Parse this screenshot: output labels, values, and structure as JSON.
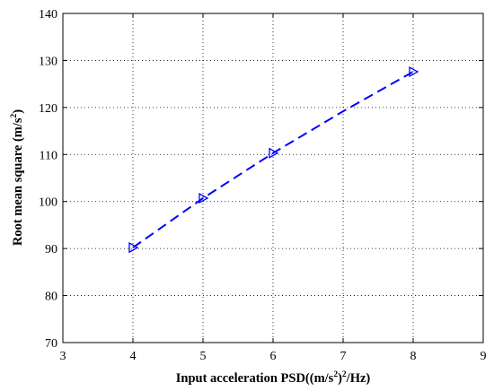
{
  "chart_data": {
    "type": "line",
    "x": [
      4,
      5,
      6,
      7,
      8
    ],
    "series": [
      {
        "values": [
          90.2,
          100.7,
          110.3,
          119.2,
          127.6
        ],
        "color": "#0000ff",
        "line_style": "dashed",
        "marker": "triangle-right",
        "marker_on": [
          true,
          true,
          true,
          false,
          true
        ]
      }
    ],
    "xlim": [
      3,
      9
    ],
    "ylim": [
      70,
      140
    ],
    "x_ticks": [
      "3",
      "4",
      "5",
      "6",
      "7",
      "8",
      "9"
    ],
    "y_ticks": [
      "70",
      "80",
      "90",
      "100",
      "110",
      "120",
      "130",
      "140"
    ],
    "xlabel": {
      "main": "Input acceleration PSD((m/s",
      "sup1": "2",
      "mid": ")",
      "sup2": "2",
      "end": "/Hz)"
    },
    "ylabel": {
      "main": "Root mean square (m/s",
      "sup": "2",
      "end": ")"
    },
    "grid": true,
    "grid_style": "dotted"
  }
}
